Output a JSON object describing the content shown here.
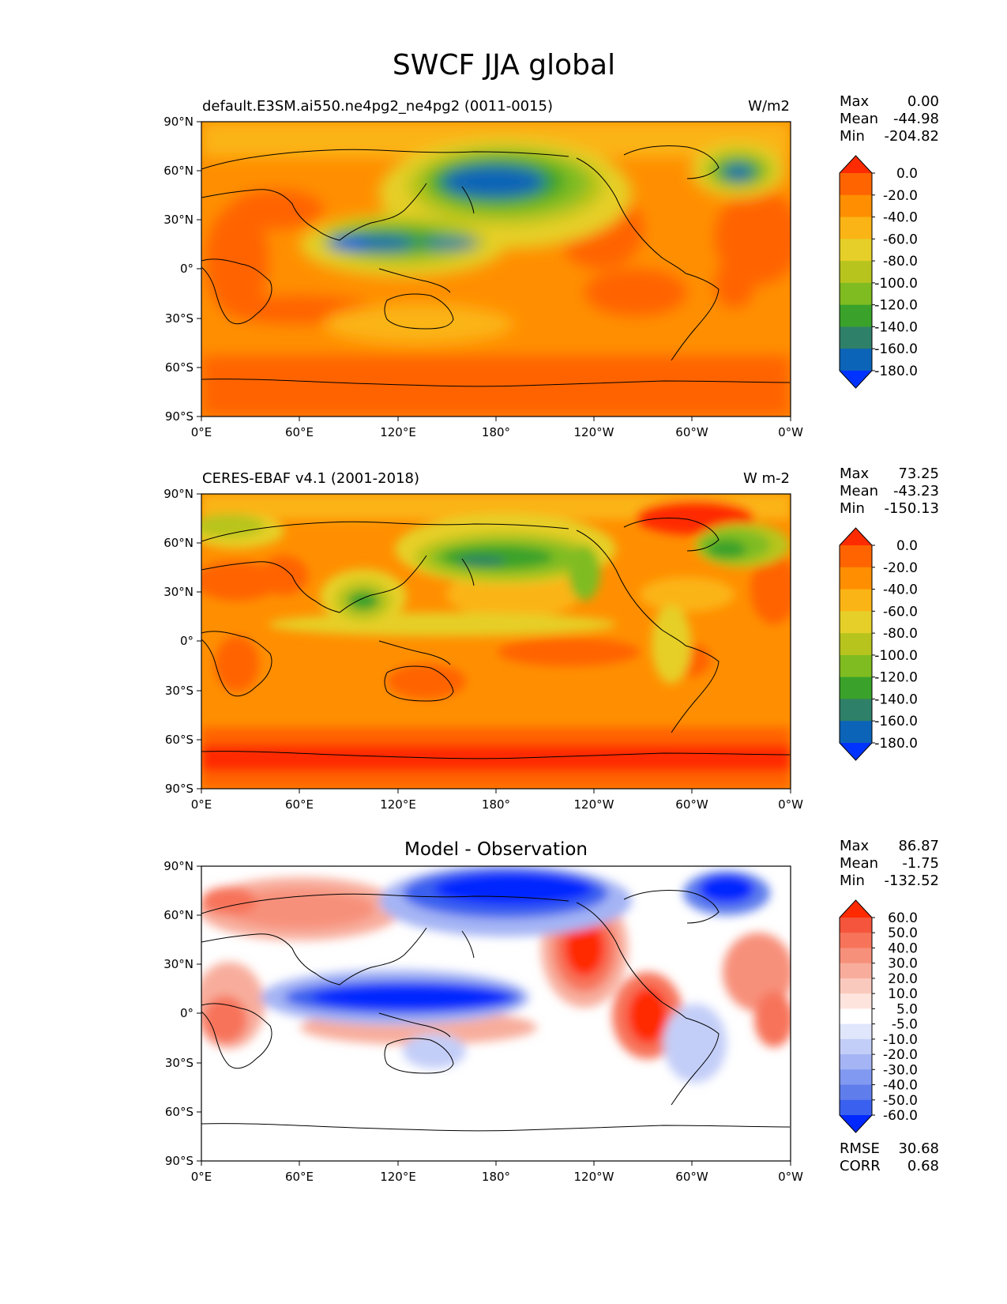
{
  "title": "SWCF JJA global",
  "x_ticks": [
    "0°E",
    "60°E",
    "120°E",
    "180°",
    "120°W",
    "60°W",
    "0°W"
  ],
  "y_ticks": [
    "90°N",
    "60°N",
    "30°N",
    "0°",
    "30°S",
    "60°S",
    "90°S"
  ],
  "panels": [
    {
      "id": "model",
      "left_title": "default.E3SM.ai550.ne4pg2_ne4pg2 (0011-0015)",
      "center_title": "",
      "units": "W/m2",
      "stats": [
        {
          "label": "Max",
          "value": "0.00"
        },
        {
          "label": "Mean",
          "value": "-44.98"
        },
        {
          "label": "Min",
          "value": "-204.82"
        }
      ],
      "colorbar": {
        "levels": [
          "0.0",
          "-20.0",
          "-40.0",
          "-60.0",
          "-80.0",
          "-100.0",
          "-120.0",
          "-140.0",
          "-160.0",
          "-180.0"
        ],
        "colors": [
          "#ff2b00",
          "#ff6400",
          "#ff8f00",
          "#fbb416",
          "#e6cf28",
          "#b8c41e",
          "#7fbc21",
          "#3aa22a",
          "#2f8068",
          "#0b64b8",
          "#0033ff"
        ]
      }
    },
    {
      "id": "obs",
      "left_title": "CERES-EBAF v4.1 (2001-2018)",
      "center_title": "",
      "units": "W m-2",
      "stats": [
        {
          "label": "Max",
          "value": "73.25"
        },
        {
          "label": "Mean",
          "value": "-43.23"
        },
        {
          "label": "Min",
          "value": "-150.13"
        }
      ],
      "colorbar": {
        "levels": [
          "0.0",
          "-20.0",
          "-40.0",
          "-60.0",
          "-80.0",
          "-100.0",
          "-120.0",
          "-140.0",
          "-160.0",
          "-180.0"
        ],
        "colors": [
          "#ff2b00",
          "#ff6400",
          "#ff8f00",
          "#fbb416",
          "#e6cf28",
          "#b8c41e",
          "#7fbc21",
          "#3aa22a",
          "#2f8068",
          "#0b64b8",
          "#0033ff"
        ]
      }
    },
    {
      "id": "diff",
      "left_title": "",
      "center_title": "Model - Observation",
      "units": "",
      "stats": [
        {
          "label": "Max",
          "value": "86.87"
        },
        {
          "label": "Mean",
          "value": "-1.75"
        },
        {
          "label": "Min",
          "value": "-132.52"
        }
      ],
      "bottom_stats": [
        {
          "label": "RMSE",
          "value": "30.68"
        },
        {
          "label": "CORR",
          "value": "0.68"
        }
      ],
      "colorbar": {
        "levels": [
          "60.0",
          "50.0",
          "40.0",
          "30.0",
          "20.0",
          "10.0",
          "5.0",
          "-5.0",
          "-10.0",
          "-20.0",
          "-30.0",
          "-40.0",
          "-50.0",
          "-60.0"
        ],
        "colors": [
          "#ff2a00",
          "#f4553c",
          "#f7735a",
          "#f7907a",
          "#f8ad9c",
          "#fac9bd",
          "#fde4dd",
          "#ffffff",
          "#e0e6fb",
          "#c3cef8",
          "#a4b4f4",
          "#8199f0",
          "#5f7eec",
          "#3a60ef",
          "#0028ff"
        ]
      }
    }
  ]
}
